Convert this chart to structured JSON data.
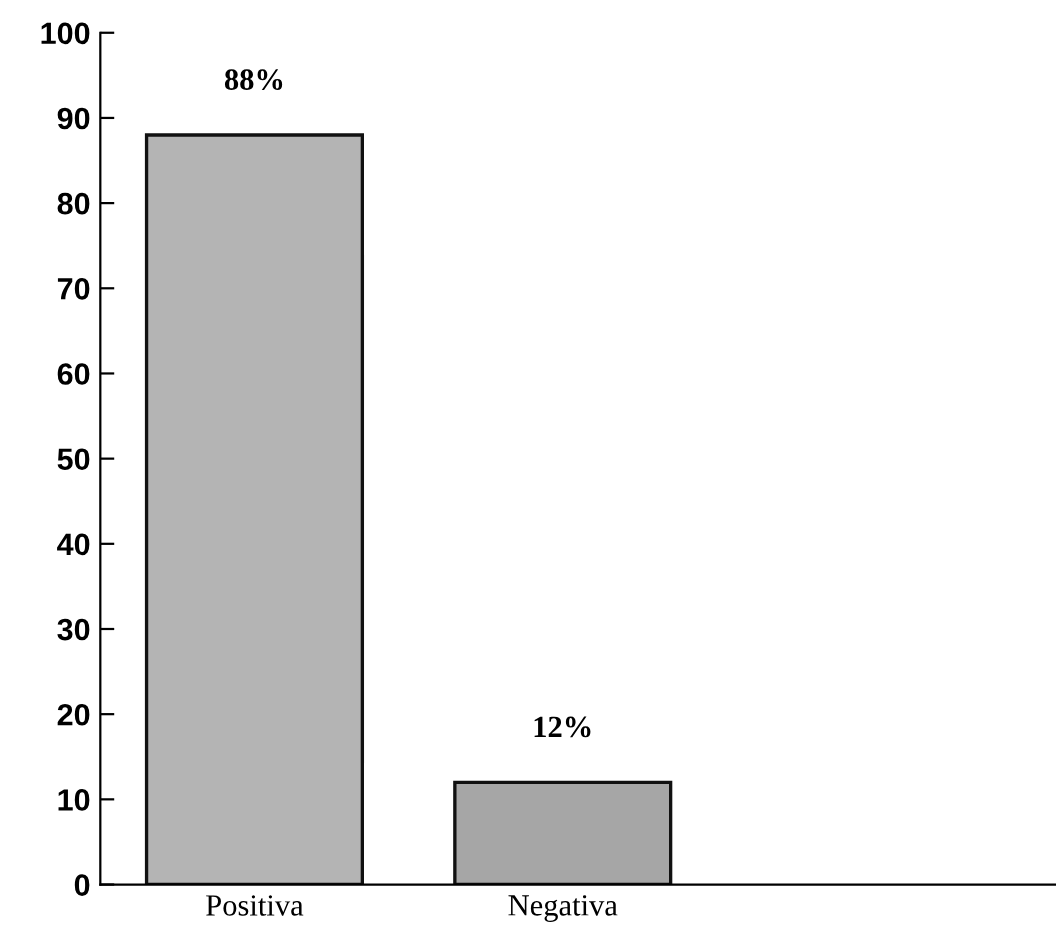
{
  "chart_data": {
    "type": "bar",
    "categories": [
      "Positiva",
      "Negativa"
    ],
    "values": [
      88,
      12
    ],
    "colors": [
      "#b4b4b4",
      "#a6a6a6"
    ],
    "value_labels": [
      "88%",
      "12%"
    ],
    "ylim": [
      0,
      100
    ],
    "yticks": [
      0,
      10,
      20,
      30,
      40,
      50,
      60,
      70,
      80,
      90,
      100
    ],
    "grid": false,
    "legend": false
  }
}
